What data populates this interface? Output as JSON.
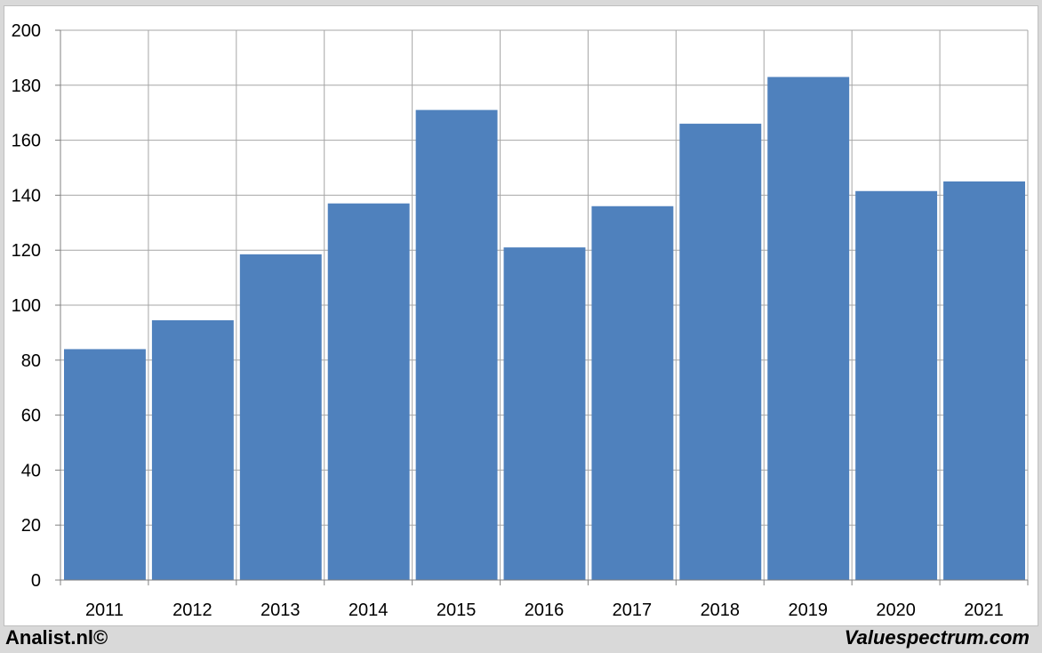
{
  "chart_data": {
    "type": "bar",
    "categories": [
      "2011",
      "2012",
      "2013",
      "2014",
      "2015",
      "2016",
      "2017",
      "2018",
      "2019",
      "2020",
      "2021"
    ],
    "values": [
      84,
      94.5,
      118.5,
      137,
      171,
      121,
      136,
      166,
      183,
      141.5,
      145
    ],
    "title": "",
    "xlabel": "",
    "ylabel": "",
    "ylim": [
      0,
      200
    ],
    "yticks": [
      0,
      20,
      40,
      60,
      80,
      100,
      120,
      140,
      160,
      180,
      200
    ],
    "grid": true,
    "bar_color": "#4f81bd",
    "grid_color": "#a6a6a6"
  },
  "footer": {
    "left": "Analist.nl©",
    "right": "Valuespectrum.com"
  }
}
